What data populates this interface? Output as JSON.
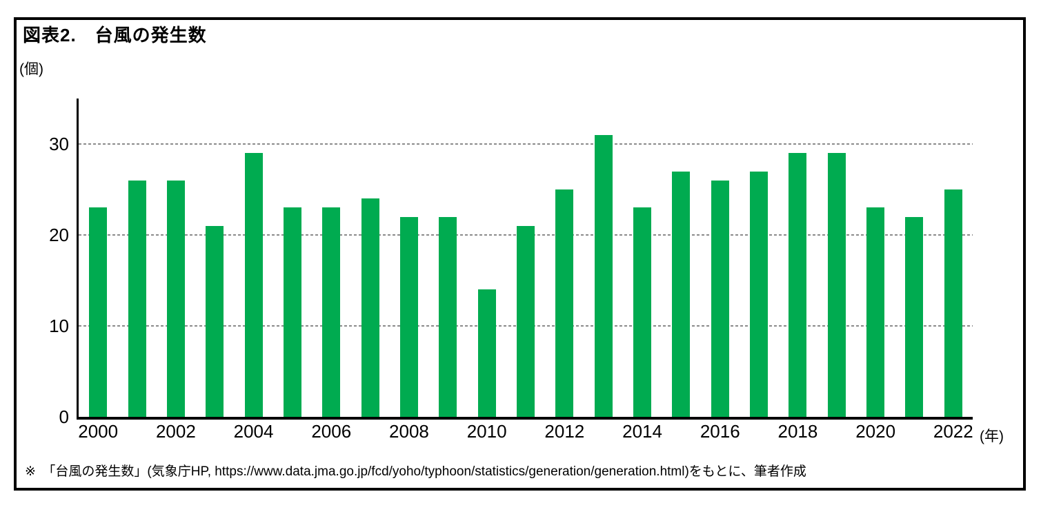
{
  "figure": {
    "title": "図表2.　台風の発生数",
    "y_unit_label": "(個)",
    "x_unit_label": "(年)",
    "source_note": "※　「台風の発生数」(気象庁HP, https://www.data.jma.go.jp/fcd/yoho/typhoon/statistics/generation/generation.html)をもとに、筆者作成"
  },
  "chart_data": {
    "type": "bar",
    "title": "台風の発生数",
    "categories": [
      2000,
      2001,
      2002,
      2003,
      2004,
      2005,
      2006,
      2007,
      2008,
      2009,
      2010,
      2011,
      2012,
      2013,
      2014,
      2015,
      2016,
      2017,
      2018,
      2019,
      2020,
      2021,
      2022
    ],
    "values": [
      23,
      26,
      26,
      21,
      29,
      23,
      23,
      24,
      22,
      22,
      14,
      21,
      25,
      31,
      23,
      27,
      26,
      27,
      29,
      29,
      23,
      22,
      25
    ],
    "xlabel": "(年)",
    "ylabel": "(個)",
    "ylim": [
      0,
      35
    ],
    "yticks": [
      0,
      10,
      20,
      30
    ],
    "xtick_label_years": [
      2000,
      2002,
      2004,
      2006,
      2008,
      2010,
      2012,
      2014,
      2016,
      2018,
      2020,
      2022
    ],
    "grid": "horizontal-dashed",
    "gridline_color": "#8a8a8a",
    "bar_color": "#00AB50",
    "axis_color": "#000000",
    "legend_position": "none"
  }
}
